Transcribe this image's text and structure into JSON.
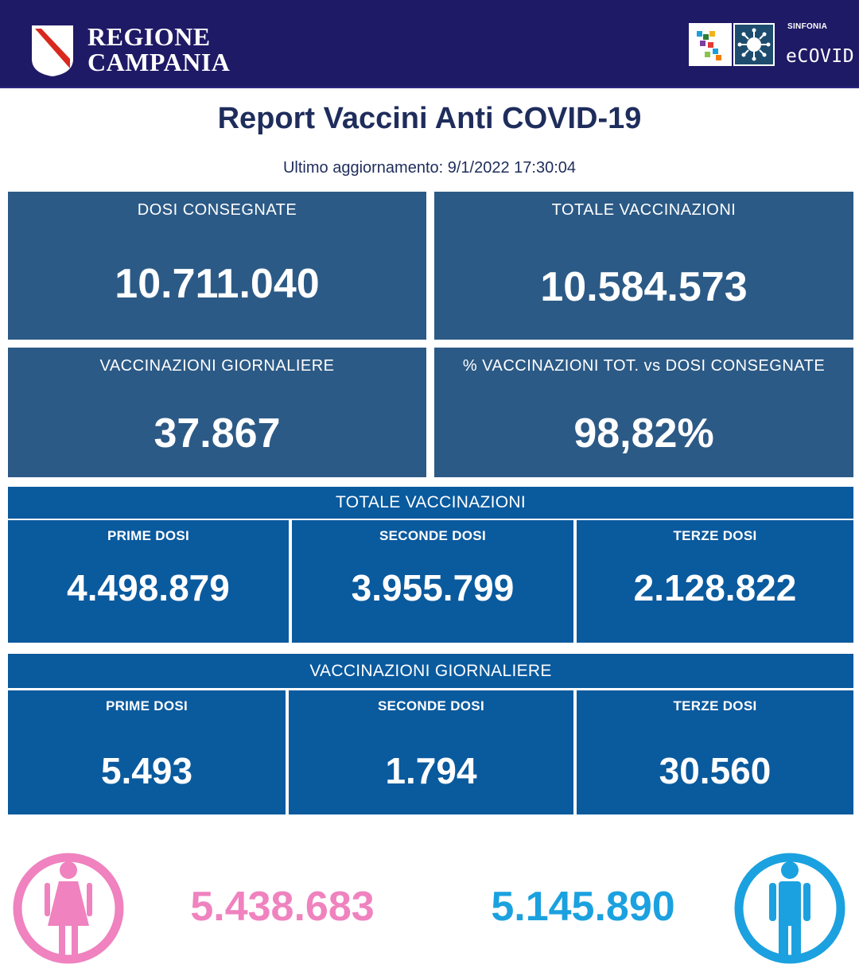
{
  "header": {
    "brand_line1": "REGIONE",
    "brand_line2": "CAMPANIA",
    "sinfonia": "SINFONIA",
    "ecovid": "eCOVID",
    "bg_color": "#1f1a66"
  },
  "title": "Report Vaccini Anti COVID-19",
  "updated": "Ultimo aggiornamento: 9/1/2022  17:30:04",
  "summary": {
    "dosi_consegnate": {
      "label": "DOSI  CONSEGNATE",
      "value": "10.711.040"
    },
    "totale_vaccinazioni": {
      "label": "TOTALE VACCINAZIONI",
      "value": "10.584.573"
    },
    "vaccinazioni_giornaliere": {
      "label": "VACCINAZIONI GIORNALIERE",
      "value": "37.867"
    },
    "percentuale": {
      "label": "% VACCINAZIONI TOT. vs DOSI CONSEGNATE",
      "value": "98,82%"
    }
  },
  "totale_section": {
    "label": "TOTALE VACCINAZIONI",
    "prime": {
      "label": "PRIME DOSI",
      "value": "4.498.879"
    },
    "seconde": {
      "label": "SECONDE DOSI",
      "value": "3.955.799"
    },
    "terze": {
      "label": "TERZE DOSI",
      "value": "2.128.822"
    }
  },
  "giornaliere_section": {
    "label": "VACCINAZIONI GIORNALIERE",
    "prime": {
      "label": "PRIME DOSI",
      "value": "5.493"
    },
    "seconde": {
      "label": "SECONDE DOSI",
      "value": "1.794"
    },
    "terze": {
      "label": "TERZE DOSI",
      "value": "30.560"
    }
  },
  "gender": {
    "female": {
      "value": "5.438.683",
      "icon": "female-person-icon",
      "color": "#ef82bf"
    },
    "male": {
      "value": "5.145.890",
      "icon": "male-person-icon",
      "color": "#1ba1df"
    }
  },
  "colors": {
    "card": "#2c5a86",
    "section": "#0a5a9e",
    "title": "#1f2d5c"
  }
}
